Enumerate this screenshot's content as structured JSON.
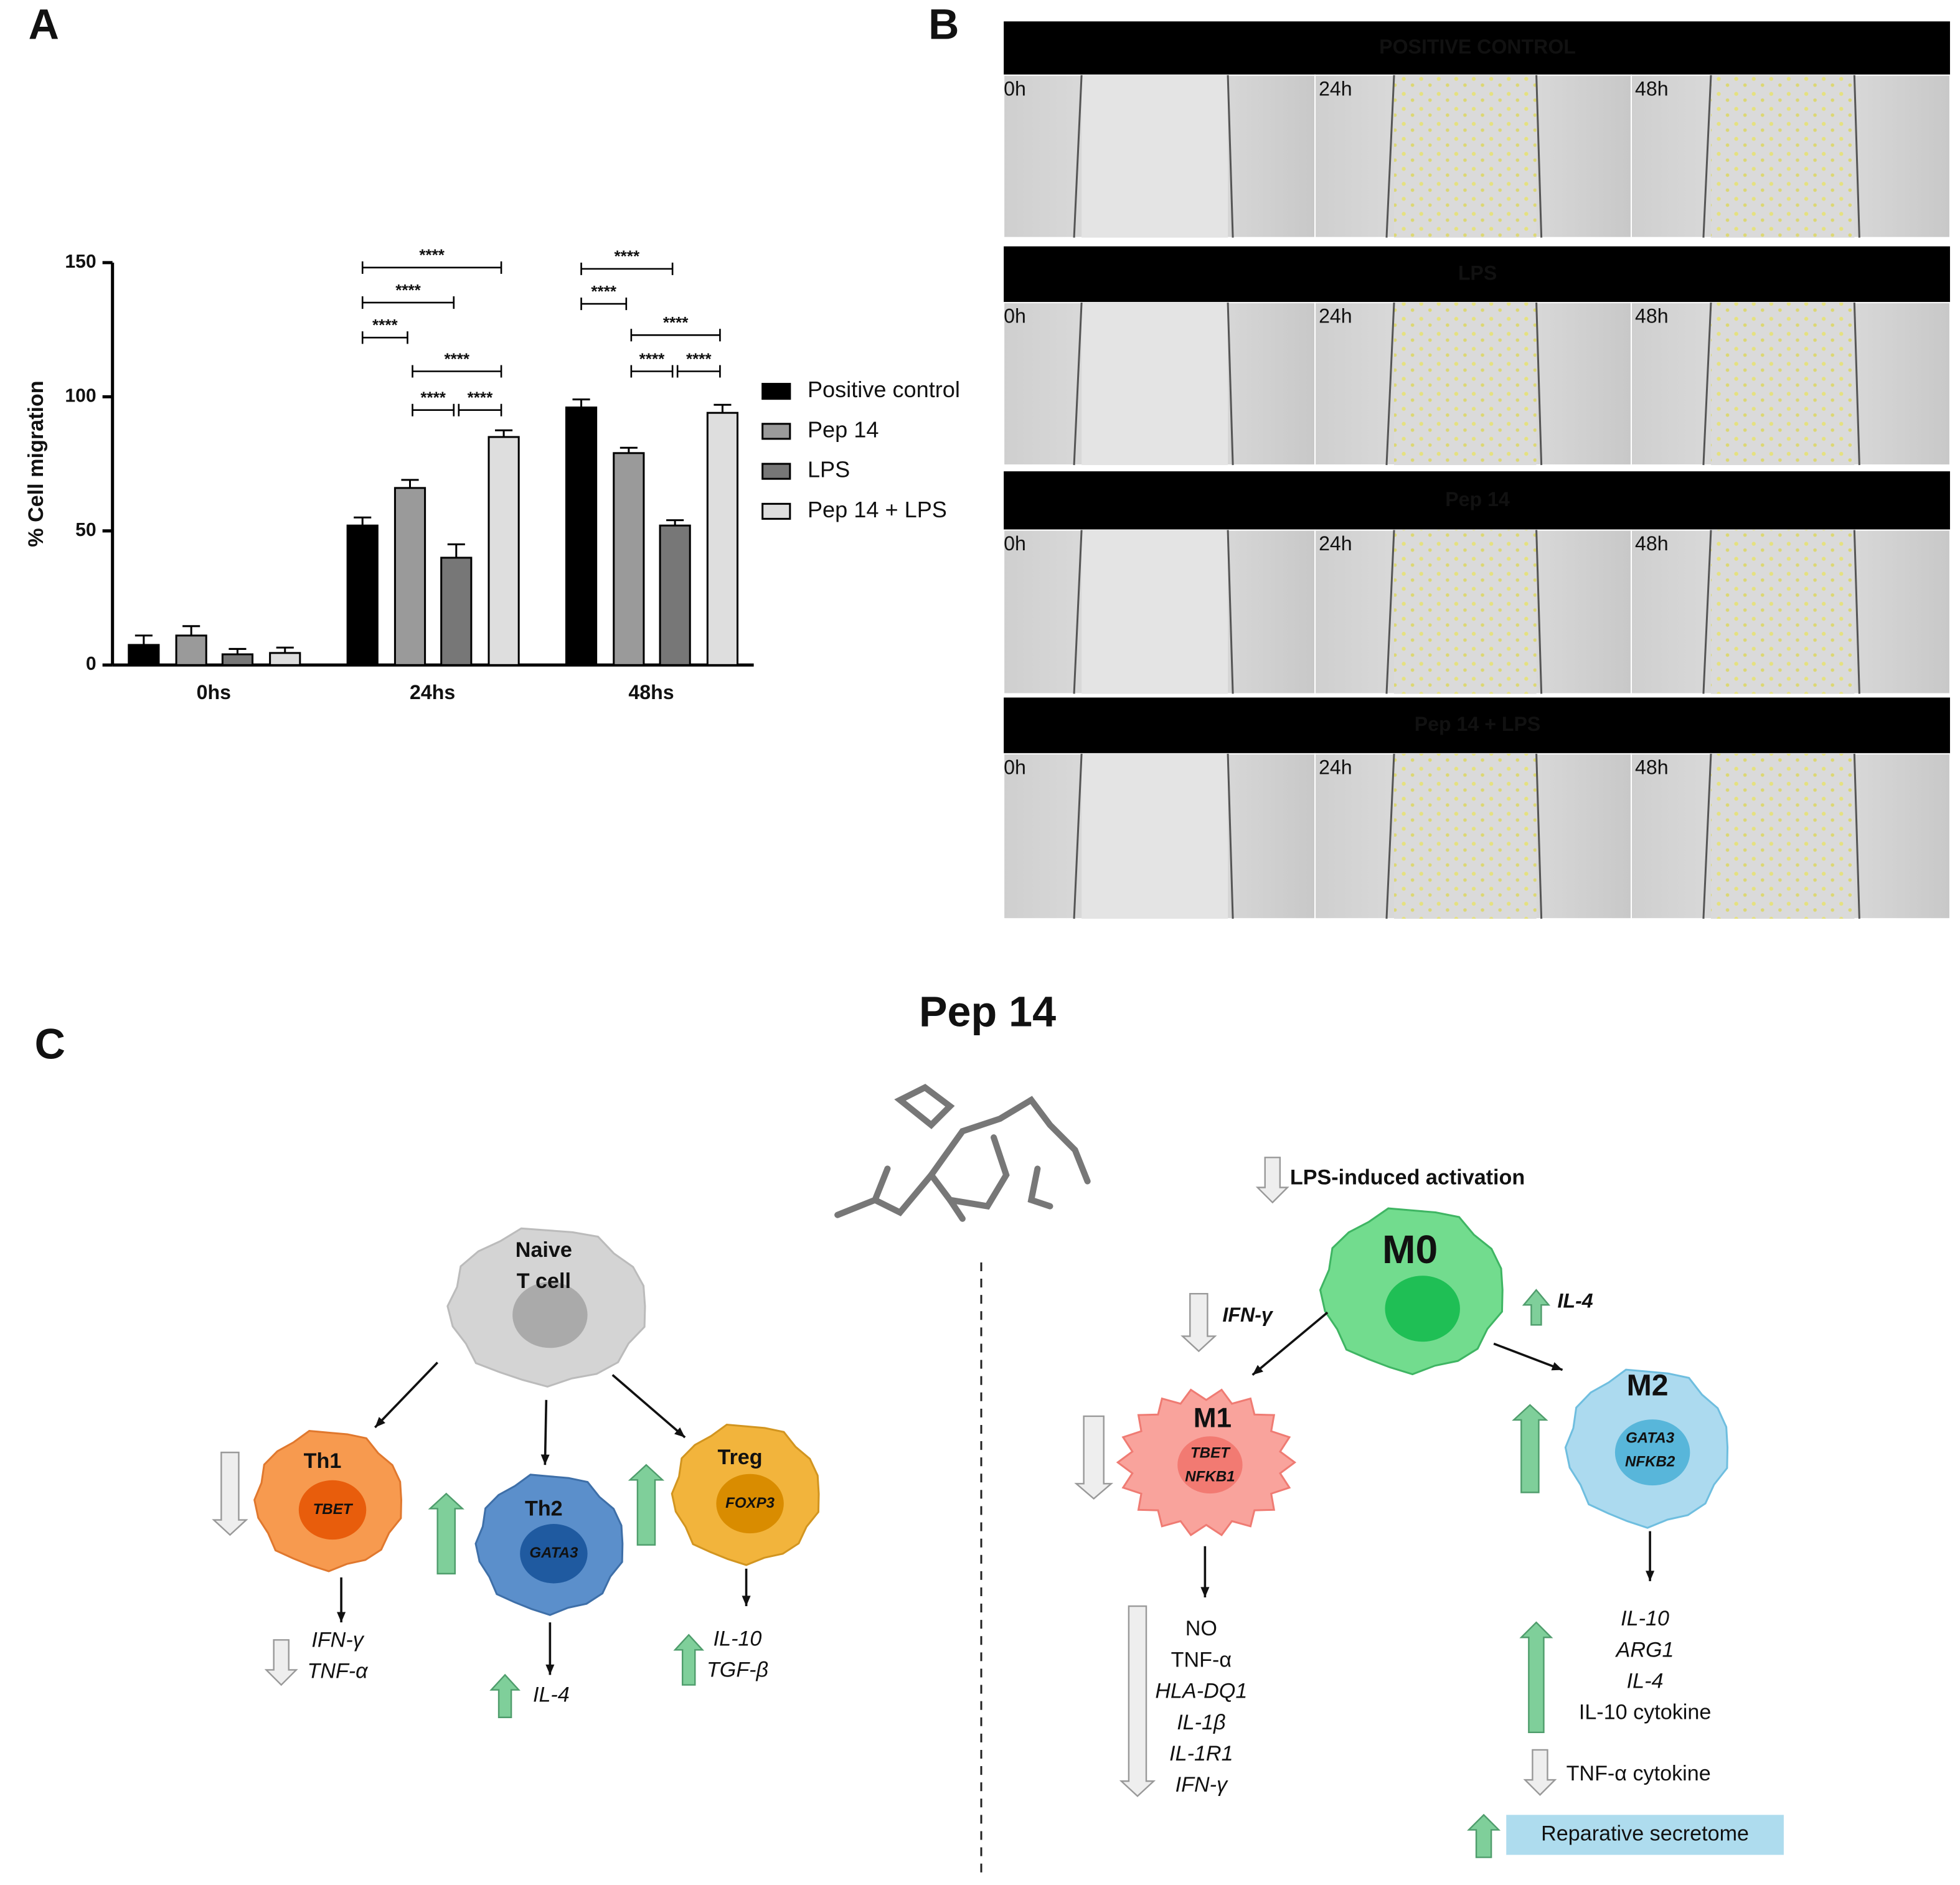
{
  "panel_labels": [
    "A",
    "B",
    "C"
  ],
  "chart_data": {
    "type": "bar",
    "ylabel": "% Cell migration",
    "categories": [
      "0hs",
      "24hs",
      "48hs"
    ],
    "series": [
      {
        "name": "Positive control",
        "color": "#000000",
        "values": [
          7.5,
          52,
          96
        ],
        "errors": [
          3.5,
          3,
          3
        ]
      },
      {
        "name": "Pep 14",
        "color": "#9a9a9a",
        "values": [
          11,
          66,
          79
        ],
        "errors": [
          3.5,
          3,
          2
        ]
      },
      {
        "name": "LPS",
        "color": "#777777",
        "values": [
          4,
          40,
          52
        ],
        "errors": [
          2,
          5,
          2
        ]
      },
      {
        "name": "Pep 14 + LPS",
        "color": "#dedede",
        "values": [
          4.5,
          85,
          94
        ],
        "errors": [
          2,
          2.5,
          3
        ]
      }
    ],
    "ylim": [
      0,
      150
    ],
    "yticks": [
      0,
      50,
      100,
      150
    ],
    "annotations": [
      "****",
      "****",
      "****",
      "****",
      "****",
      "****",
      "****",
      "****",
      "****",
      "****",
      "****"
    ]
  },
  "wound_healing": {
    "rows": [
      "POSITIVE CONTROL",
      "LPS",
      "Pep 14",
      "Pep 14 + LPS"
    ],
    "timepoints": [
      "0h",
      "24h",
      "48h"
    ]
  },
  "schematic": {
    "title": "Pep 14",
    "naive": [
      "Naive",
      "T cell"
    ],
    "th1": {
      "name": "Th1",
      "gene": "TBET",
      "outputs": [
        "IFN-γ",
        "TNF-α"
      ]
    },
    "th2": {
      "name": "Th2",
      "gene": "GATA3",
      "outputs": [
        "IL-4"
      ]
    },
    "treg": {
      "name": "Treg",
      "gene": "FOXP3",
      "outputs": [
        "IL-10",
        "TGF-β"
      ]
    },
    "lps": "LPS-induced  activation",
    "m0": {
      "name": "M0",
      "to_m1": "IFN-γ",
      "to_m2": "IL-4"
    },
    "m1": {
      "name": "M1",
      "genes": [
        "TBET",
        "NFKB1"
      ],
      "outputs": [
        "NO",
        "TNF-α",
        "HLA-DQ1",
        "IL-1β",
        "IL-1R1",
        "IFN-γ"
      ]
    },
    "m2": {
      "name": "M2",
      "genes": [
        "GATA3",
        "NFKB2"
      ],
      "outputs": [
        "IL-10",
        "ARG1",
        "IL-4",
        "IL-10 cytokine"
      ],
      "down": "TNF-α cytokine",
      "secretome": "Reparative secretome"
    }
  }
}
